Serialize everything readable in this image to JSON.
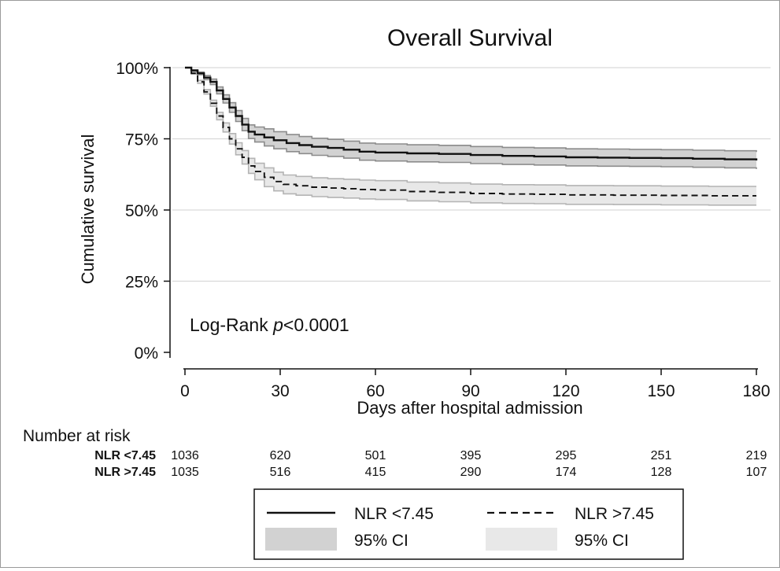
{
  "chart_data": {
    "type": "line",
    "title": "Overall Survival",
    "xlabel": "Days after hospital admission",
    "ylabel": "Cumulative survival",
    "xlim": [
      0,
      180
    ],
    "ylim": [
      0,
      1
    ],
    "x_ticks": [
      0,
      30,
      60,
      90,
      120,
      150,
      180
    ],
    "y_ticks": [
      {
        "value": 0,
        "label": "0%"
      },
      {
        "value": 0.25,
        "label": "25%"
      },
      {
        "value": 0.5,
        "label": "50%"
      },
      {
        "value": 0.75,
        "label": "75%"
      },
      {
        "value": 1,
        "label": "100%"
      }
    ],
    "grid": "horizontal",
    "annotation": {
      "prefix": "Log-Rank ",
      "italic": "p",
      "suffix": "<0.0001"
    },
    "series": [
      {
        "name": "NLR <7.45",
        "line_style": "solid",
        "line_color": "#111111",
        "ci_color": "#d2d2d2",
        "ci_edge_color": "#8c8c8c",
        "points": [
          [
            0,
            1.0
          ],
          [
            2,
            0.99
          ],
          [
            4,
            0.98
          ],
          [
            6,
            0.965
          ],
          [
            8,
            0.95
          ],
          [
            10,
            0.92
          ],
          [
            12,
            0.89
          ],
          [
            14,
            0.86
          ],
          [
            16,
            0.83
          ],
          [
            18,
            0.8
          ],
          [
            20,
            0.775
          ],
          [
            22,
            0.765
          ],
          [
            25,
            0.755
          ],
          [
            28,
            0.745
          ],
          [
            32,
            0.735
          ],
          [
            36,
            0.728
          ],
          [
            40,
            0.722
          ],
          [
            45,
            0.718
          ],
          [
            50,
            0.712
          ],
          [
            55,
            0.705
          ],
          [
            60,
            0.702
          ],
          [
            70,
            0.699
          ],
          [
            80,
            0.697
          ],
          [
            90,
            0.693
          ],
          [
            100,
            0.69
          ],
          [
            110,
            0.688
          ],
          [
            120,
            0.685
          ],
          [
            130,
            0.684
          ],
          [
            140,
            0.683
          ],
          [
            150,
            0.682
          ],
          [
            160,
            0.68
          ],
          [
            170,
            0.678
          ],
          [
            180,
            0.674
          ]
        ],
        "ci_halfwidth": 0.03
      },
      {
        "name": "NLR >7.45",
        "line_style": "dashed",
        "line_color": "#111111",
        "ci_color": "#e8e8e8",
        "ci_edge_color": "#b4b4b4",
        "points": [
          [
            0,
            1.0
          ],
          [
            2,
            0.98
          ],
          [
            4,
            0.95
          ],
          [
            6,
            0.915
          ],
          [
            8,
            0.875
          ],
          [
            10,
            0.83
          ],
          [
            12,
            0.79
          ],
          [
            14,
            0.75
          ],
          [
            16,
            0.715
          ],
          [
            18,
            0.685
          ],
          [
            20,
            0.655
          ],
          [
            22,
            0.635
          ],
          [
            25,
            0.615
          ],
          [
            28,
            0.6
          ],
          [
            31,
            0.59
          ],
          [
            35,
            0.585
          ],
          [
            40,
            0.58
          ],
          [
            45,
            0.577
          ],
          [
            50,
            0.575
          ],
          [
            55,
            0.572
          ],
          [
            60,
            0.57
          ],
          [
            70,
            0.565
          ],
          [
            80,
            0.562
          ],
          [
            90,
            0.558
          ],
          [
            100,
            0.556
          ],
          [
            110,
            0.555
          ],
          [
            120,
            0.553
          ],
          [
            135,
            0.552
          ],
          [
            150,
            0.551
          ],
          [
            165,
            0.55
          ],
          [
            180,
            0.55
          ]
        ],
        "ci_halfwidth": 0.033
      }
    ],
    "risk_table": {
      "header": "Number at risk",
      "rows": [
        {
          "label": "NLR <7.45",
          "values": [
            "1036",
            "620",
            "501",
            "395",
            "295",
            "251",
            "219"
          ]
        },
        {
          "label": "NLR >7.45",
          "values": [
            "1035",
            "516",
            "415",
            "290",
            "174",
            "128",
            "107"
          ]
        }
      ]
    },
    "legend": {
      "placement": "bottom-center",
      "items": [
        {
          "label": "NLR <7.45",
          "kind": "line-solid"
        },
        {
          "label": "NLR >7.45",
          "kind": "line-dashed"
        },
        {
          "label": "95% CI",
          "kind": "ci-dark"
        },
        {
          "label": "95% CI",
          "kind": "ci-light"
        }
      ]
    }
  }
}
